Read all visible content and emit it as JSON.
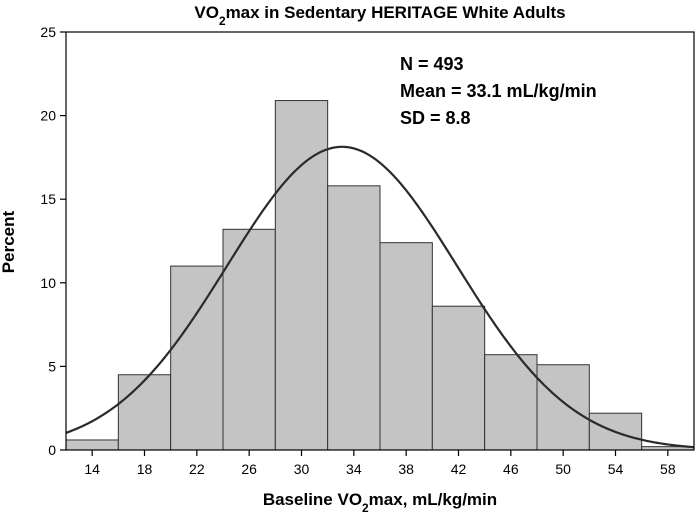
{
  "chart_data": {
    "type": "bar",
    "title": "VO₂max in Sedentary HERITAGE White Adults",
    "xlabel": "Baseline VO₂max, mL/kg/min",
    "ylabel": "Percent",
    "xlim": [
      12,
      60
    ],
    "ylim": [
      0,
      25
    ],
    "xticks": [
      14,
      18,
      22,
      26,
      30,
      34,
      38,
      42,
      46,
      50,
      54,
      58
    ],
    "yticks": [
      0,
      5,
      10,
      15,
      20,
      25
    ],
    "bins": [
      {
        "start": 12,
        "end": 16,
        "value": 0.6
      },
      {
        "start": 16,
        "end": 20,
        "value": 4.5
      },
      {
        "start": 20,
        "end": 24,
        "value": 11.0
      },
      {
        "start": 24,
        "end": 28,
        "value": 13.2
      },
      {
        "start": 28,
        "end": 32,
        "value": 20.9
      },
      {
        "start": 32,
        "end": 36,
        "value": 15.8
      },
      {
        "start": 36,
        "end": 40,
        "value": 12.4
      },
      {
        "start": 40,
        "end": 44,
        "value": 8.6
      },
      {
        "start": 44,
        "end": 48,
        "value": 5.7
      },
      {
        "start": 48,
        "end": 52,
        "value": 5.1
      },
      {
        "start": 52,
        "end": 56,
        "value": 2.2
      },
      {
        "start": 56,
        "end": 60,
        "value": 0.2
      }
    ],
    "normal_curve": {
      "mean": 33.1,
      "sd": 8.8,
      "bin_width": 4
    },
    "annotations": [
      "N = 493",
      "Mean = 33.1 mL/kg/min",
      "SD = 8.8"
    ],
    "grid": false,
    "colors": {
      "bar_fill": "#c4c4c4",
      "bar_stroke": "#333333",
      "curve": "#2a2a2a"
    }
  }
}
